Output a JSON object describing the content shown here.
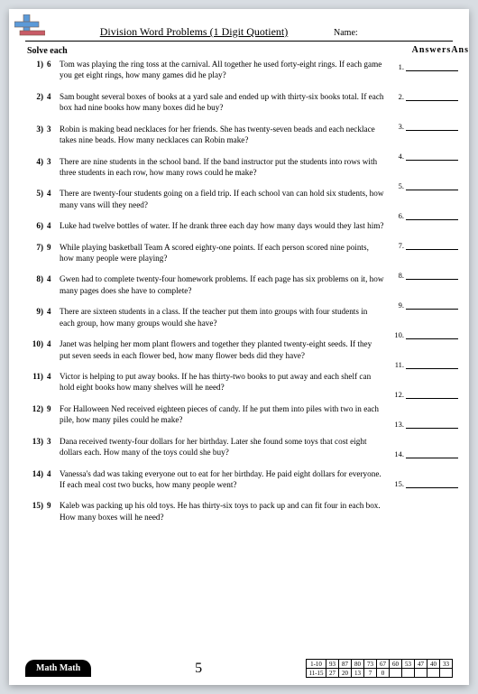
{
  "header": {
    "title": "Division Word Problems (1 Digit Quotient)",
    "name_label": "Name:",
    "solve_label": "Solve each",
    "answers_heading": "AnswersAns"
  },
  "problems": [
    {
      "num": "1)",
      "key": "6",
      "text": "Tom was playing the ring toss at the carnival. All together he used forty-eight rings. If each game you get eight rings, how many games did he play?"
    },
    {
      "num": "2)",
      "key": "4",
      "text": "Sam bought several boxes of books at a yard sale and ended up with thirty-six books total. If each box had nine books how many boxes did he buy?"
    },
    {
      "num": "3)",
      "key": "3",
      "text": "Robin is making bead necklaces for her friends. She has twenty-seven beads and each necklace takes nine beads. How many necklaces can Robin make?"
    },
    {
      "num": "4)",
      "key": "3",
      "text": "There are nine students in the school band. If the band instructor put the students into rows with three students in each row, how many rows could he make?"
    },
    {
      "num": "5)",
      "key": "4",
      "text": "There are twenty-four students going on a field trip. If each school van can hold six students, how many vans will they need?"
    },
    {
      "num": "6)",
      "key": "4",
      "text": "Luke had twelve bottles of water. If he drank three each day how many days would they last him?"
    },
    {
      "num": "7)",
      "key": "9",
      "text": "While playing basketball Team A scored eighty-one points. If each person scored nine points, how many people were playing?"
    },
    {
      "num": "8)",
      "key": "4",
      "text": "Gwen had to complete twenty-four homework problems. If each page has six problems on it, how many pages does she have to complete?"
    },
    {
      "num": "9)",
      "key": "4",
      "text": "There are sixteen students in a class. If the teacher put them into groups with four students in each group, how many groups would she have?"
    },
    {
      "num": "10)",
      "key": "4",
      "text": "Janet was helping her mom plant flowers and together they planted twenty-eight seeds. If they put seven seeds in each flower bed, how many flower beds did they have?"
    },
    {
      "num": "11)",
      "key": "4",
      "text": "Victor is helping to put away books. If he has thirty-two books to put away and each shelf can hold eight books how many shelves will he need?"
    },
    {
      "num": "12)",
      "key": "9",
      "text": "For Halloween Ned received eighteen pieces of candy. If he put them into piles with two in each pile, how many piles could he make?"
    },
    {
      "num": "13)",
      "key": "3",
      "text": "Dana received twenty-four dollars for her birthday. Later she found some toys that cost eight dollars each. How many of the toys could she buy?"
    },
    {
      "num": "14)",
      "key": "4",
      "text": "Vanessa's dad was taking everyone out to eat for her birthday. He paid eight dollars for everyone. If each meal cost two bucks, how many people went?"
    },
    {
      "num": "15)",
      "key": "9",
      "text": "Kaleb was packing up his old toys. He has thirty-six toys to pack up and can fit four in each box. How many boxes will he need?"
    }
  ],
  "answer_lines": [
    "1.",
    "2.",
    "3.",
    "4.",
    "5.",
    "6.",
    "7.",
    "8.",
    "9.",
    "10.",
    "11.",
    "12.",
    "13.",
    "14.",
    "15."
  ],
  "footer": {
    "badge": "Math Math",
    "page_number": "5",
    "score": {
      "row1_label": "1-10",
      "row2_label": "11-15",
      "row1": [
        "93",
        "87",
        "80",
        "73",
        "67",
        "60",
        "53",
        "47",
        "40",
        "33"
      ],
      "row2": [
        "27",
        "20",
        "13",
        "7",
        "0"
      ]
    }
  },
  "colors": {
    "logo_blue": "#5b9ad8",
    "logo_red": "#c85b66",
    "logo_border": "#7b5a4a"
  }
}
